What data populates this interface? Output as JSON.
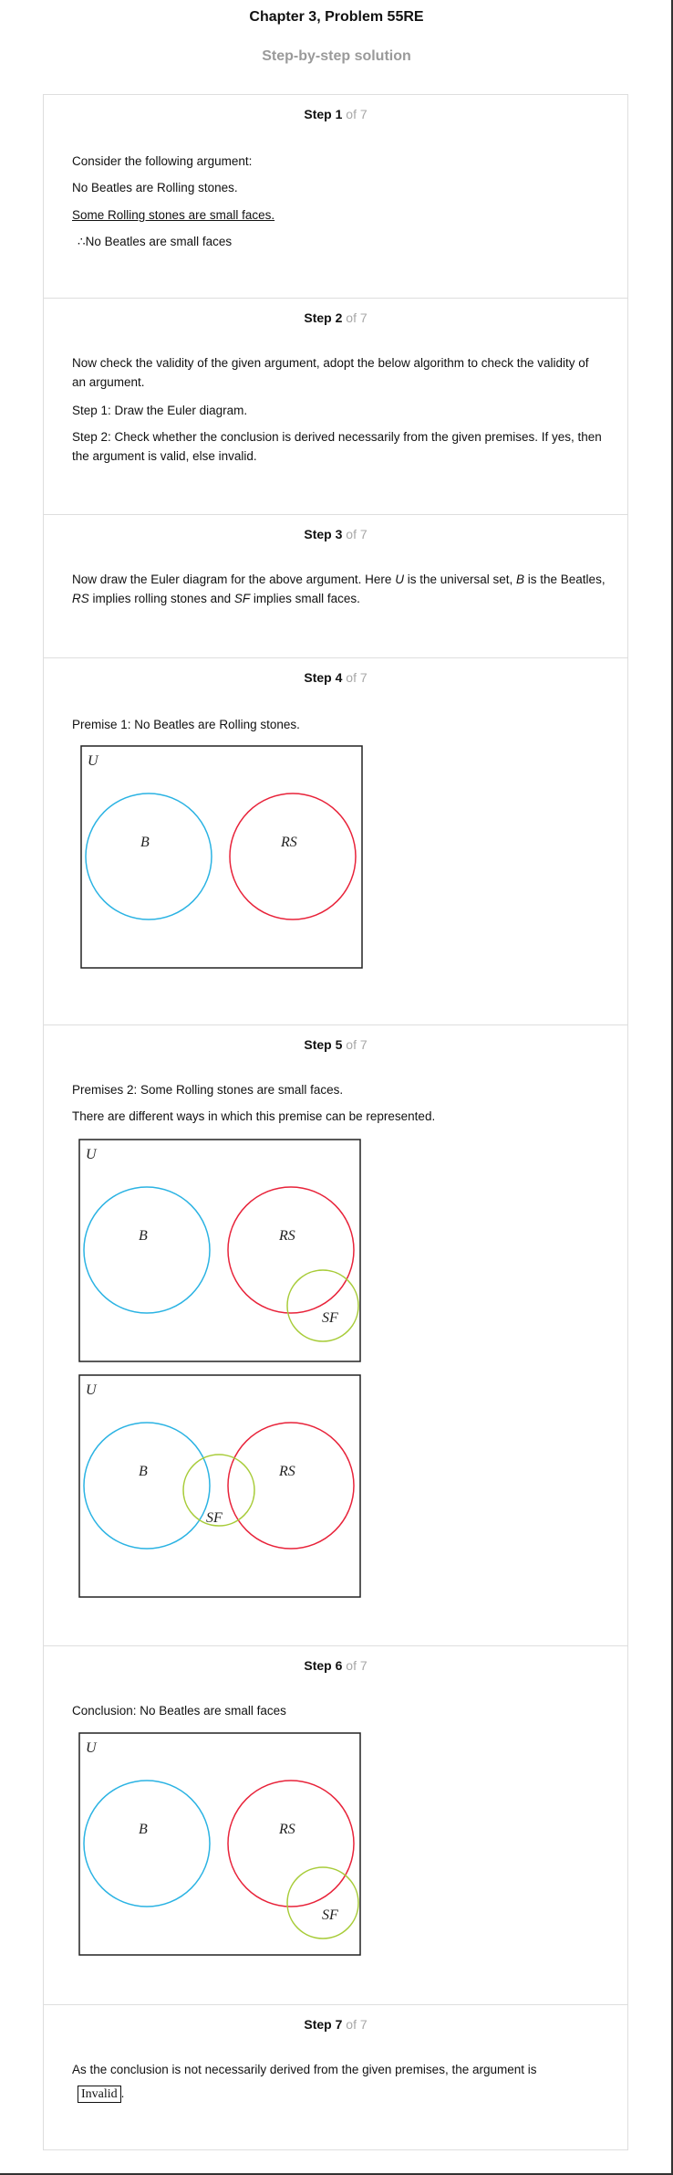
{
  "header": {
    "title": "Chapter 3, Problem 55RE",
    "subtitle": "Step-by-step solution"
  },
  "step_label": "Step",
  "step_total": "of 7",
  "steps": {
    "s1": {
      "number": "1",
      "intro": "Consider the following argument:",
      "premise1": "No Beatles are Rolling stones.",
      "premise2": "Some Rolling stones are small faces.",
      "therefore": "∴",
      "conclusion": "No Beatles are small faces"
    },
    "s2": {
      "number": "2",
      "text": "Now check the validity of the given argument, adopt the below algorithm to check the validity of an argument.",
      "algo1": "Step 1: Draw the Euler diagram.",
      "algo2": "Step 2: Check whether the conclusion is derived necessarily from the given premises. If yes, then the argument is valid, else invalid."
    },
    "s3": {
      "number": "3",
      "t1": "Now draw the Euler diagram for the above argument. Here ",
      "U": "U",
      "t2": " is the universal set, ",
      "B": "B",
      "t3": " is the Beatles, ",
      "RS": "RS",
      "t4": " implies rolling stones and ",
      "SF": "SF",
      "t5": " implies small faces."
    },
    "s4": {
      "number": "4",
      "text": "Premise 1: No Beatles are Rolling stones."
    },
    "s5": {
      "number": "5",
      "text1": "Premises 2: Some Rolling stones are small faces.",
      "text2": "There are different ways in which this premise can be represented."
    },
    "s6": {
      "number": "6",
      "text": "Conclusion: No Beatles are small faces"
    },
    "s7": {
      "number": "7",
      "text": "As the conclusion is not necessarily derived from the given premises, the argument is",
      "answer": "Invalid",
      "period": "."
    }
  },
  "diagram_labels": {
    "universe": "U",
    "beatles": "B",
    "rolling_stones": "RS",
    "small_faces": "SF"
  },
  "colors": {
    "beatles_circle": "#2bb3e3",
    "rolling_stones_circle": "#e8233a",
    "small_faces_circle": "#a8cc3a",
    "step_of_text": "#a8a8a8",
    "subtitle": "#9a9a9a"
  }
}
